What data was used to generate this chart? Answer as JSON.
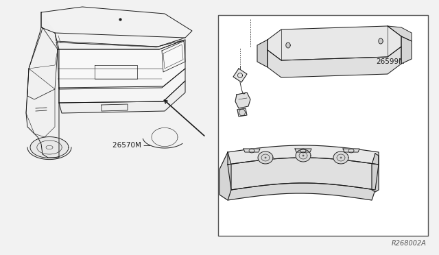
{
  "bg_color": "#f2f2f2",
  "panel_bg": "#ffffff",
  "line_color": "#1a1a1a",
  "label_color": "#1a1a1a",
  "part_labels": [
    "26570M",
    "26599M"
  ],
  "ref_code": "R268002A",
  "figsize": [
    6.4,
    3.72
  ],
  "dpi": 100
}
